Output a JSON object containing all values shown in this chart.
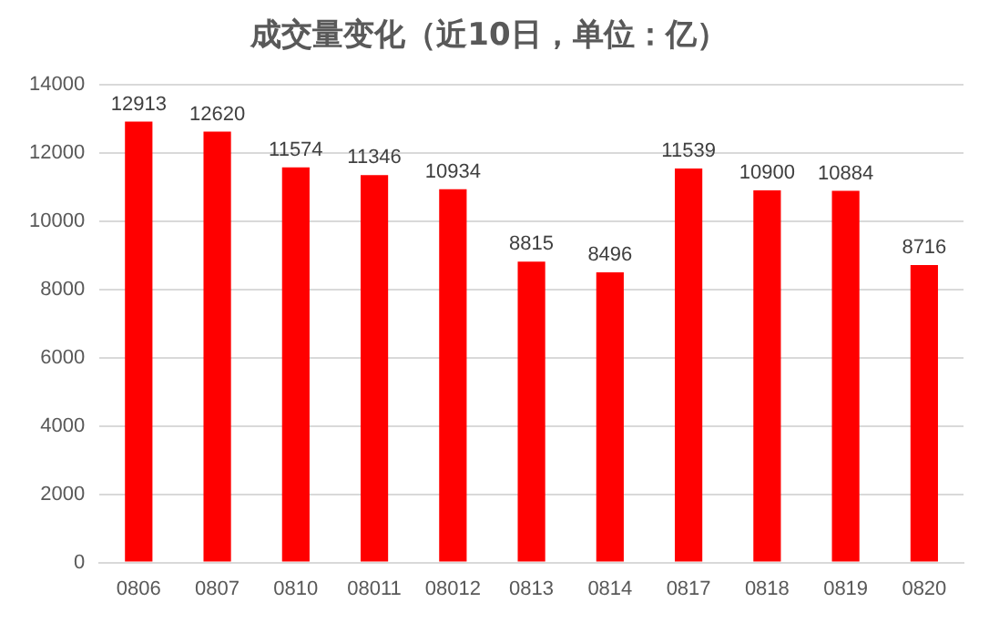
{
  "chart_data": {
    "type": "bar",
    "title": "成交量变化（近10日，单位：亿）",
    "categories": [
      "0806",
      "0807",
      "0810",
      "08011",
      "08012",
      "0813",
      "0814",
      "0817",
      "0818",
      "0819",
      "0820"
    ],
    "values": [
      12913,
      12620,
      11574,
      11346,
      10934,
      8815,
      8496,
      11539,
      10900,
      10884,
      8716
    ],
    "color": "#ff0000",
    "ylim": [
      0,
      14000
    ],
    "yticks": [
      0,
      2000,
      4000,
      6000,
      8000,
      10000,
      12000,
      14000
    ],
    "grid": "y",
    "legend": false,
    "data_labels": true
  }
}
